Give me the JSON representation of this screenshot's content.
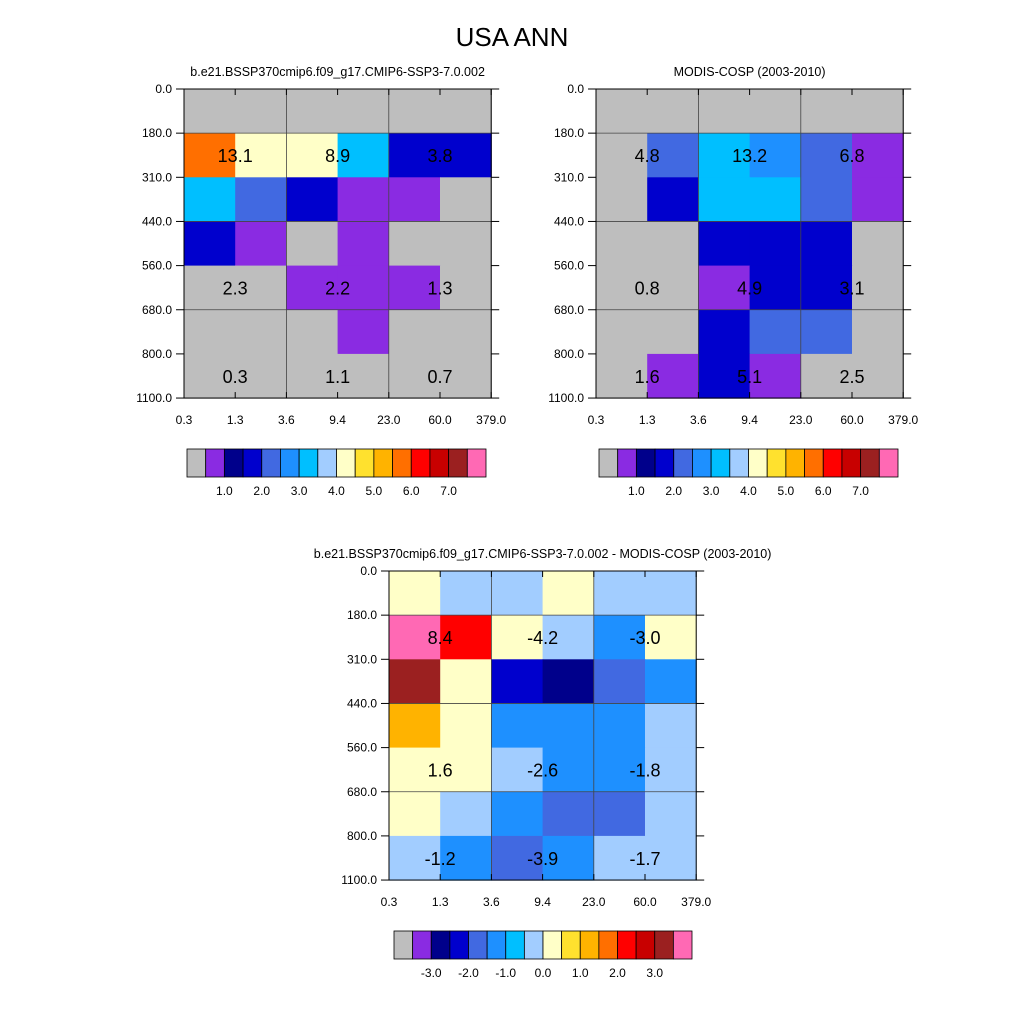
{
  "figure": {
    "title": "USA ANN"
  },
  "chart_data": [
    {
      "type": "heatmap",
      "title": "b.e21.BSSP370cmip6.f09_g17.CMIP6-SSP3-7.0.002",
      "x_ticks": [
        "0.3",
        "1.3",
        "3.6",
        "9.4",
        "23.0",
        "60.0",
        "379.0"
      ],
      "y_ticks": [
        "0.0",
        "180.0",
        "310.0",
        "440.0",
        "560.0",
        "680.0",
        "800.0",
        "1100.0"
      ],
      "values": [
        [
          0.0,
          0.0,
          0.0,
          0.0,
          0.0,
          0.0
        ],
        [
          5.0,
          3.8,
          3.8,
          2.8,
          1.2,
          1.2
        ],
        [
          2.8,
          1.6,
          1.2,
          0.5,
          0.5,
          0.0
        ],
        [
          1.2,
          0.5,
          0.0,
          0.5,
          0.0,
          0.0
        ],
        [
          0.0,
          0.0,
          0.5,
          0.5,
          0.5,
          0.0
        ],
        [
          0.0,
          0.0,
          0.0,
          0.5,
          0.0,
          0.0
        ],
        [
          0.0,
          0.0,
          0.0,
          0.0,
          0.0,
          0.0
        ]
      ],
      "block_labels": [
        {
          "row": 1,
          "col": 0,
          "text": "13.1"
        },
        {
          "row": 1,
          "col": 2,
          "text": "8.9"
        },
        {
          "row": 1,
          "col": 4,
          "text": "3.8"
        },
        {
          "row": 4,
          "col": 0,
          "text": "2.3"
        },
        {
          "row": 4,
          "col": 2,
          "text": "2.2"
        },
        {
          "row": 4,
          "col": 4,
          "text": "1.3"
        },
        {
          "row": 6,
          "col": 0,
          "text": "0.3"
        },
        {
          "row": 6,
          "col": 2,
          "text": "1.1"
        },
        {
          "row": 6,
          "col": 4,
          "text": "0.7"
        }
      ],
      "colorbar": {
        "colors": [
          "#bebebe",
          "#8a2be2",
          "#00008b",
          "#0000cd",
          "#4169e1",
          "#1e90ff",
          "#00bfff",
          "#a2cdff",
          "#ffffc8",
          "#ffe12e",
          "#ffb300",
          "#ff6f00",
          "#ff0000",
          "#c80000",
          "#9b2020",
          "#ff69b4"
        ],
        "labels": [
          "1.0",
          "2.0",
          "3.0",
          "4.0",
          "5.0",
          "6.0",
          "7.0"
        ],
        "boundaries": [
          0.25,
          0.75,
          1.0,
          1.5,
          2.0,
          2.5,
          3.0,
          3.5,
          4.0,
          4.5,
          5.0,
          5.5,
          6.0,
          6.5,
          7.0
        ]
      }
    },
    {
      "type": "heatmap",
      "title": "MODIS-COSP (2003-2010)",
      "x_ticks": [
        "0.3",
        "1.3",
        "3.6",
        "9.4",
        "23.0",
        "60.0",
        "379.0"
      ],
      "y_ticks": [
        "0.0",
        "180.0",
        "310.0",
        "440.0",
        "560.0",
        "680.0",
        "800.0",
        "1100.0"
      ],
      "values": [
        [
          0.0,
          0.0,
          0.0,
          0.0,
          0.0,
          0.0
        ],
        [
          0.0,
          1.8,
          2.8,
          2.3,
          1.8,
          0.5
        ],
        [
          0.0,
          1.2,
          2.8,
          2.8,
          1.8,
          0.5
        ],
        [
          0.0,
          0.0,
          1.2,
          1.2,
          1.2,
          0.0
        ],
        [
          0.0,
          0.0,
          0.5,
          1.2,
          1.2,
          0.0
        ],
        [
          0.0,
          0.0,
          1.2,
          1.6,
          1.6,
          0.0
        ],
        [
          0.0,
          0.5,
          1.2,
          0.5,
          0.0,
          0.0
        ]
      ],
      "block_labels": [
        {
          "row": 1,
          "col": 0,
          "text": "4.8"
        },
        {
          "row": 1,
          "col": 2,
          "text": "13.2"
        },
        {
          "row": 1,
          "col": 4,
          "text": "6.8"
        },
        {
          "row": 4,
          "col": 0,
          "text": "0.8"
        },
        {
          "row": 4,
          "col": 2,
          "text": "4.9"
        },
        {
          "row": 4,
          "col": 4,
          "text": "3.1"
        },
        {
          "row": 6,
          "col": 0,
          "text": "1.6"
        },
        {
          "row": 6,
          "col": 2,
          "text": "5.1"
        },
        {
          "row": 6,
          "col": 4,
          "text": "2.5"
        }
      ],
      "colorbar": {
        "colors": [
          "#bebebe",
          "#8a2be2",
          "#00008b",
          "#0000cd",
          "#4169e1",
          "#1e90ff",
          "#00bfff",
          "#a2cdff",
          "#ffffc8",
          "#ffe12e",
          "#ffb300",
          "#ff6f00",
          "#ff0000",
          "#c80000",
          "#9b2020",
          "#ff69b4"
        ],
        "labels": [
          "1.0",
          "2.0",
          "3.0",
          "4.0",
          "5.0",
          "6.0",
          "7.0"
        ],
        "boundaries": [
          0.25,
          0.75,
          1.0,
          1.5,
          2.0,
          2.5,
          3.0,
          3.5,
          4.0,
          4.5,
          5.0,
          5.5,
          6.0,
          6.5,
          7.0
        ]
      }
    },
    {
      "type": "heatmap",
      "title": "b.e21.BSSP370cmip6.f09_g17.CMIP6-SSP3-7.0.002 - MODIS-COSP (2003-2010)",
      "x_ticks": [
        "0.3",
        "1.3",
        "3.6",
        "9.4",
        "23.0",
        "60.0",
        "379.0"
      ],
      "y_ticks": [
        "0.0",
        "180.0",
        "310.0",
        "440.0",
        "560.0",
        "680.0",
        "800.0",
        "1100.0"
      ],
      "values": [
        [
          0.2,
          -0.2,
          -0.2,
          0.2,
          -0.2,
          -0.2
        ],
        [
          3.8,
          2.2,
          0.2,
          -0.2,
          -1.2,
          0.2
        ],
        [
          3.2,
          0.2,
          -2.2,
          -2.8,
          -1.8,
          -1.2
        ],
        [
          1.2,
          0.2,
          -1.2,
          -1.2,
          -1.2,
          -0.2
        ],
        [
          0.2,
          0.2,
          -0.2,
          -1.2,
          -1.2,
          -0.2
        ],
        [
          0.2,
          -0.2,
          -1.2,
          -1.8,
          -1.8,
          -0.2
        ],
        [
          -0.2,
          -1.2,
          -1.8,
          -1.2,
          -0.2,
          -0.2
        ]
      ],
      "block_labels": [
        {
          "row": 1,
          "col": 0,
          "text": "8.4"
        },
        {
          "row": 1,
          "col": 2,
          "text": "-4.2"
        },
        {
          "row": 1,
          "col": 4,
          "text": "-3.0"
        },
        {
          "row": 4,
          "col": 0,
          "text": "1.6"
        },
        {
          "row": 4,
          "col": 2,
          "text": "-2.6"
        },
        {
          "row": 4,
          "col": 4,
          "text": "-1.8"
        },
        {
          "row": 6,
          "col": 0,
          "text": "-1.2"
        },
        {
          "row": 6,
          "col": 2,
          "text": "-3.9"
        },
        {
          "row": 6,
          "col": 4,
          "text": "-1.7"
        }
      ],
      "colorbar": {
        "colors": [
          "#bebebe",
          "#8a2be2",
          "#00008b",
          "#0000cd",
          "#4169e1",
          "#1e90ff",
          "#00bfff",
          "#a2cdff",
          "#ffffc8",
          "#ffe12e",
          "#ffb300",
          "#ff6f00",
          "#ff0000",
          "#c80000",
          "#9b2020",
          "#ff69b4"
        ],
        "labels": [
          "-3.0",
          "-2.0",
          "-1.0",
          "0.0",
          "1.0",
          "2.0",
          "3.0"
        ],
        "boundaries": [
          -3.5,
          -3.0,
          -2.5,
          -2.0,
          -1.5,
          -1.0,
          -0.5,
          0.0,
          0.5,
          1.0,
          1.5,
          2.0,
          2.5,
          3.0,
          3.5
        ]
      }
    }
  ]
}
